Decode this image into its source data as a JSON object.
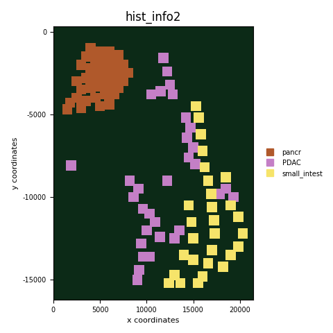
{
  "chart_data": {
    "type": "scatter",
    "title": "hist_info2",
    "x_label": "x coordinates",
    "y_label": "y coordinates",
    "xlim": [
      0,
      21400
    ],
    "ylim": [
      -16200,
      300
    ],
    "xticks": [
      0,
      5000,
      10000,
      15000,
      20000
    ],
    "yticks": [
      -15000,
      -10000,
      -5000,
      0
    ],
    "legend": "right",
    "grid": false,
    "series": [
      {
        "name": "pancr",
        "color": "#b0592b",
        "marker": "square",
        "x": [
          1800,
          2500,
          2500,
          3000,
          3000,
          3500,
          3500,
          3500,
          4000,
          4000,
          4000,
          4500,
          4500,
          4500,
          5000,
          5000,
          5000,
          5000,
          5500,
          5500,
          5500,
          6000,
          6000,
          6000,
          6000,
          6500,
          6500,
          6500,
          7000,
          7000,
          7000,
          7500,
          7500,
          8000,
          1500,
          3000
        ],
        "y": [
          -4300,
          -4000,
          -3000,
          -2000,
          -3500,
          -1500,
          -2800,
          -4200,
          -1000,
          -2200,
          -3400,
          -1600,
          -2800,
          -4000,
          -1200,
          -2200,
          -3300,
          -4500,
          -1800,
          -2800,
          -3800,
          -1200,
          -2300,
          -3300,
          -4400,
          -1800,
          -2800,
          -3800,
          -1400,
          -2400,
          -3400,
          -2000,
          -3000,
          -2500,
          -4700,
          -4600
        ]
      },
      {
        "name": "PDAC",
        "color": "#c47fc6",
        "marker": "square",
        "x": [
          11800,
          12200,
          12500,
          11500,
          10500,
          12800,
          14200,
          14700,
          14300,
          15000,
          14500,
          15200,
          8200,
          8600,
          9100,
          9600,
          10300,
          10900,
          11400,
          10000,
          9400,
          9600,
          9200,
          9000,
          10300,
          13000,
          13500,
          18500,
          19300,
          17800,
          1900,
          12200
        ],
        "y": [
          -1600,
          -2400,
          -3200,
          -3600,
          -3800,
          -3800,
          -5200,
          -5800,
          -6400,
          -7000,
          -7600,
          -8000,
          -9000,
          -10000,
          -9500,
          -10700,
          -11000,
          -11500,
          -12400,
          -12000,
          -12800,
          -13600,
          -14400,
          -15000,
          -13600,
          -12500,
          -12000,
          -9500,
          -10000,
          -9800,
          -8100,
          -9000
        ]
      },
      {
        "name": "small_intest",
        "color": "#f6e46a",
        "marker": "square",
        "x": [
          15300,
          15600,
          15800,
          16000,
          16200,
          16600,
          16900,
          17000,
          17200,
          17300,
          17000,
          16600,
          16000,
          15500,
          18500,
          19000,
          19800,
          20300,
          19800,
          19000,
          18200,
          14800,
          15000,
          14500,
          13000,
          12400,
          13600,
          14000,
          15000
        ],
        "y": [
          -4500,
          -5200,
          -6200,
          -7200,
          -8200,
          -9000,
          -9800,
          -10600,
          -11400,
          -12200,
          -13200,
          -14000,
          -14800,
          -15200,
          -8800,
          -10500,
          -11200,
          -12200,
          -13000,
          -13500,
          -14200,
          -11500,
          -12500,
          -10500,
          -14700,
          -15200,
          -15200,
          -13500,
          -13800
        ]
      }
    ]
  }
}
